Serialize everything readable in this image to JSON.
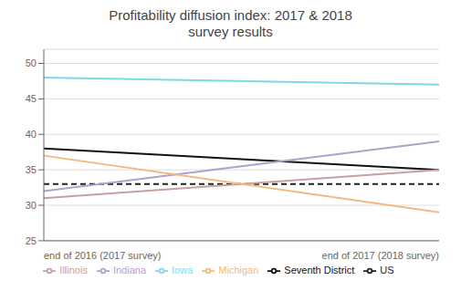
{
  "chart_data": {
    "type": "line",
    "title": "Profitability diffusion index: 2017 & 2018\nsurvey results",
    "categories": [
      "end of 2016 (2017 survey)",
      "end of 2017 (2018 survey)"
    ],
    "series": [
      {
        "name": "US",
        "color": "#222222",
        "line_style": "dashed",
        "values": [
          33,
          33
        ]
      },
      {
        "name": "Seventh District",
        "color": "#111111",
        "line_style": "solid",
        "values": [
          38,
          35
        ]
      },
      {
        "name": "Illinois",
        "color": "#c9a0a0",
        "line_style": "solid",
        "values": [
          31,
          35
        ]
      },
      {
        "name": "Indiana",
        "color": "#b0a0cc",
        "line_style": "solid",
        "values": [
          32,
          39
        ]
      },
      {
        "name": "Iowa",
        "color": "#7fd8e8",
        "line_style": "solid",
        "values": [
          48,
          47
        ]
      },
      {
        "name": "Michigan",
        "color": "#f4b87a",
        "line_style": "solid",
        "values": [
          37,
          29
        ]
      }
    ],
    "ylim": [
      25,
      52
    ],
    "yticks": [
      25,
      30,
      35,
      40,
      45,
      50
    ],
    "grid": true,
    "legend": "bottom"
  }
}
